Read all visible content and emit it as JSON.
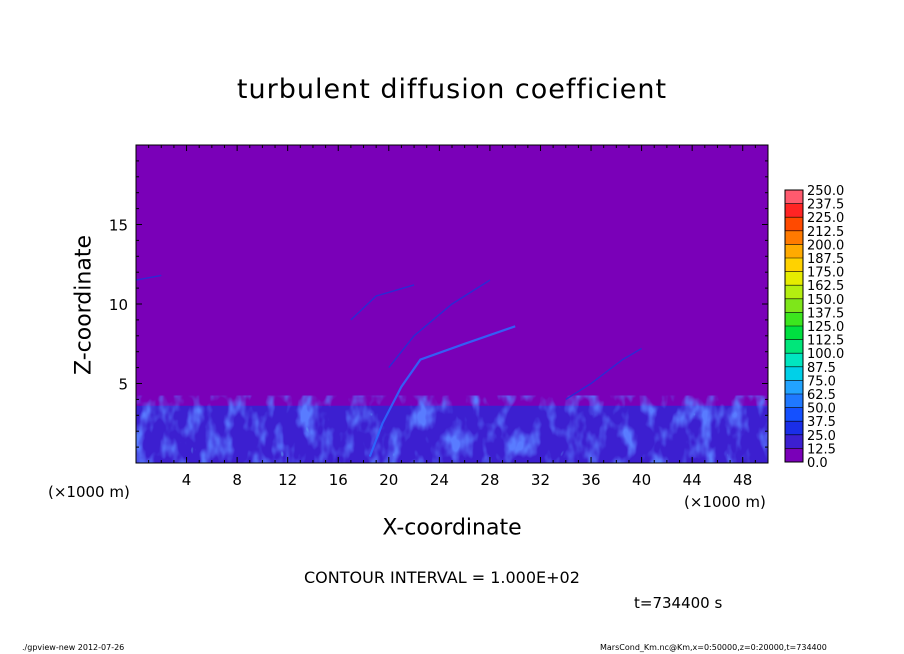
{
  "chart_data": {
    "type": "heatmap",
    "title": "turbulent diffusion coefficient",
    "xlabel": "X-coordinate",
    "ylabel": "Z-coordinate",
    "x_unit_label_left": "(×1000 m)",
    "x_unit_label_right": "(×1000 m)",
    "xlim": [
      0,
      50
    ],
    "ylim": [
      0,
      20
    ],
    "x_ticks": [
      4,
      8,
      12,
      16,
      20,
      24,
      28,
      32,
      36,
      40,
      44,
      48
    ],
    "y_ticks": [
      5,
      10,
      15
    ],
    "colorbar": {
      "levels": [
        "0.0",
        "12.5",
        "25.0",
        "37.5",
        "50.0",
        "62.5",
        "75.0",
        "87.5",
        "100.0",
        "112.5",
        "125.0",
        "137.5",
        "150.0",
        "162.5",
        "175.0",
        "187.5",
        "200.0",
        "212.5",
        "225.0",
        "237.5",
        "250.0"
      ],
      "colors": [
        "#7a00b8",
        "#3c1fd0",
        "#1a2ee8",
        "#1450ff",
        "#1f78ff",
        "#22a3ff",
        "#00d0e8",
        "#00e6c0",
        "#00e67a",
        "#00e040",
        "#3ce61e",
        "#7ee61a",
        "#b4ee10",
        "#e6ec00",
        "#ffd200",
        "#ffaa00",
        "#ff7a00",
        "#ff4a00",
        "#ff2424",
        "#ff5a6e"
      ]
    },
    "background_color": "#7a00b8",
    "grid": false
  },
  "contour_interval": "CONTOUR INTERVAL = 1.000E+02",
  "time_label": "t=734400 s",
  "footer_left": "./gpview-new  2012-07-26",
  "footer_right": "MarsCond_Km.nc@Km,x=0:50000,z=0:20000,t=734400"
}
